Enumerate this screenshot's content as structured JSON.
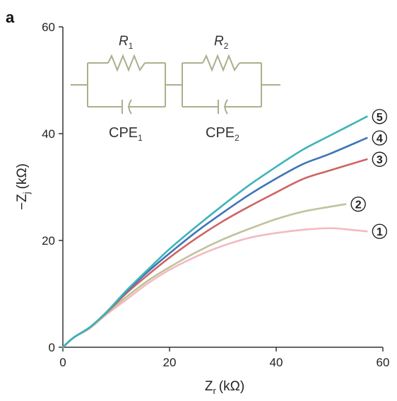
{
  "panel_label": "a",
  "chart_data": {
    "type": "line",
    "title": "",
    "xlabel": {
      "main": "Z",
      "sub": "r",
      "unit": "(kΩ)"
    },
    "ylabel": {
      "prefix": "−Z",
      "sub": "j",
      "unit": "(kΩ)"
    },
    "xlim": [
      0,
      60
    ],
    "ylim": [
      0,
      60
    ],
    "xticks": [
      0,
      20,
      40,
      60
    ],
    "yticks": [
      0,
      20,
      40,
      60
    ],
    "xtick_labels": [
      "0",
      "20",
      "40",
      "60"
    ],
    "ytick_labels": [
      "0",
      "20",
      "40",
      "60"
    ],
    "grid": false,
    "series": [
      {
        "label": "1",
        "color": "#f3b9c0",
        "x": [
          0,
          2,
          5,
          8,
          12,
          16,
          20,
          25,
          30,
          35,
          40,
          45,
          50,
          53,
          57
        ],
        "y": [
          0,
          1.8,
          3.5,
          6,
          9,
          12,
          14.5,
          17,
          19,
          20.5,
          21.4,
          22,
          22.3,
          22.1,
          21.7
        ]
      },
      {
        "label": "2",
        "color": "#bfc29c",
        "x": [
          0,
          2,
          5,
          8,
          12,
          16,
          20,
          25,
          30,
          35,
          40,
          45,
          50,
          53
        ],
        "y": [
          0,
          1.8,
          3.6,
          6.2,
          9.5,
          12.5,
          15,
          17.8,
          20.2,
          22.2,
          24,
          25.4,
          26.3,
          26.8
        ]
      },
      {
        "label": "3",
        "color": "#cf6464",
        "x": [
          0,
          2,
          5,
          8,
          12,
          16,
          20,
          25,
          30,
          35,
          40,
          45,
          50,
          57
        ],
        "y": [
          0,
          1.8,
          3.7,
          6.3,
          10.2,
          13.6,
          16.8,
          20.4,
          23.6,
          26.4,
          29,
          31.5,
          33.1,
          35.2
        ]
      },
      {
        "label": "4",
        "color": "#3f74b7",
        "x": [
          0,
          2,
          5,
          8,
          12,
          16,
          20,
          25,
          30,
          35,
          40,
          45,
          50,
          57
        ],
        "y": [
          0,
          1.8,
          3.7,
          6.4,
          10.5,
          14.2,
          17.6,
          21.6,
          25.2,
          28.6,
          31.6,
          34.3,
          36.2,
          39.2
        ]
      },
      {
        "label": "5",
        "color": "#3fb3b8",
        "x": [
          0,
          2,
          5,
          8,
          12,
          16,
          20,
          25,
          30,
          35,
          40,
          45,
          50,
          57
        ],
        "y": [
          0,
          1.8,
          3.7,
          6.4,
          10.7,
          14.6,
          18.4,
          22.6,
          26.6,
          30.4,
          33.8,
          37,
          39.6,
          43.2
        ]
      }
    ]
  },
  "circuit": {
    "r1": {
      "main": "R",
      "sub": "1"
    },
    "r2": {
      "main": "R",
      "sub": "2"
    },
    "cpe1": {
      "main": "CPE",
      "sub": "1"
    },
    "cpe2": {
      "main": "CPE",
      "sub": "2"
    },
    "color": "#a9b08c"
  }
}
